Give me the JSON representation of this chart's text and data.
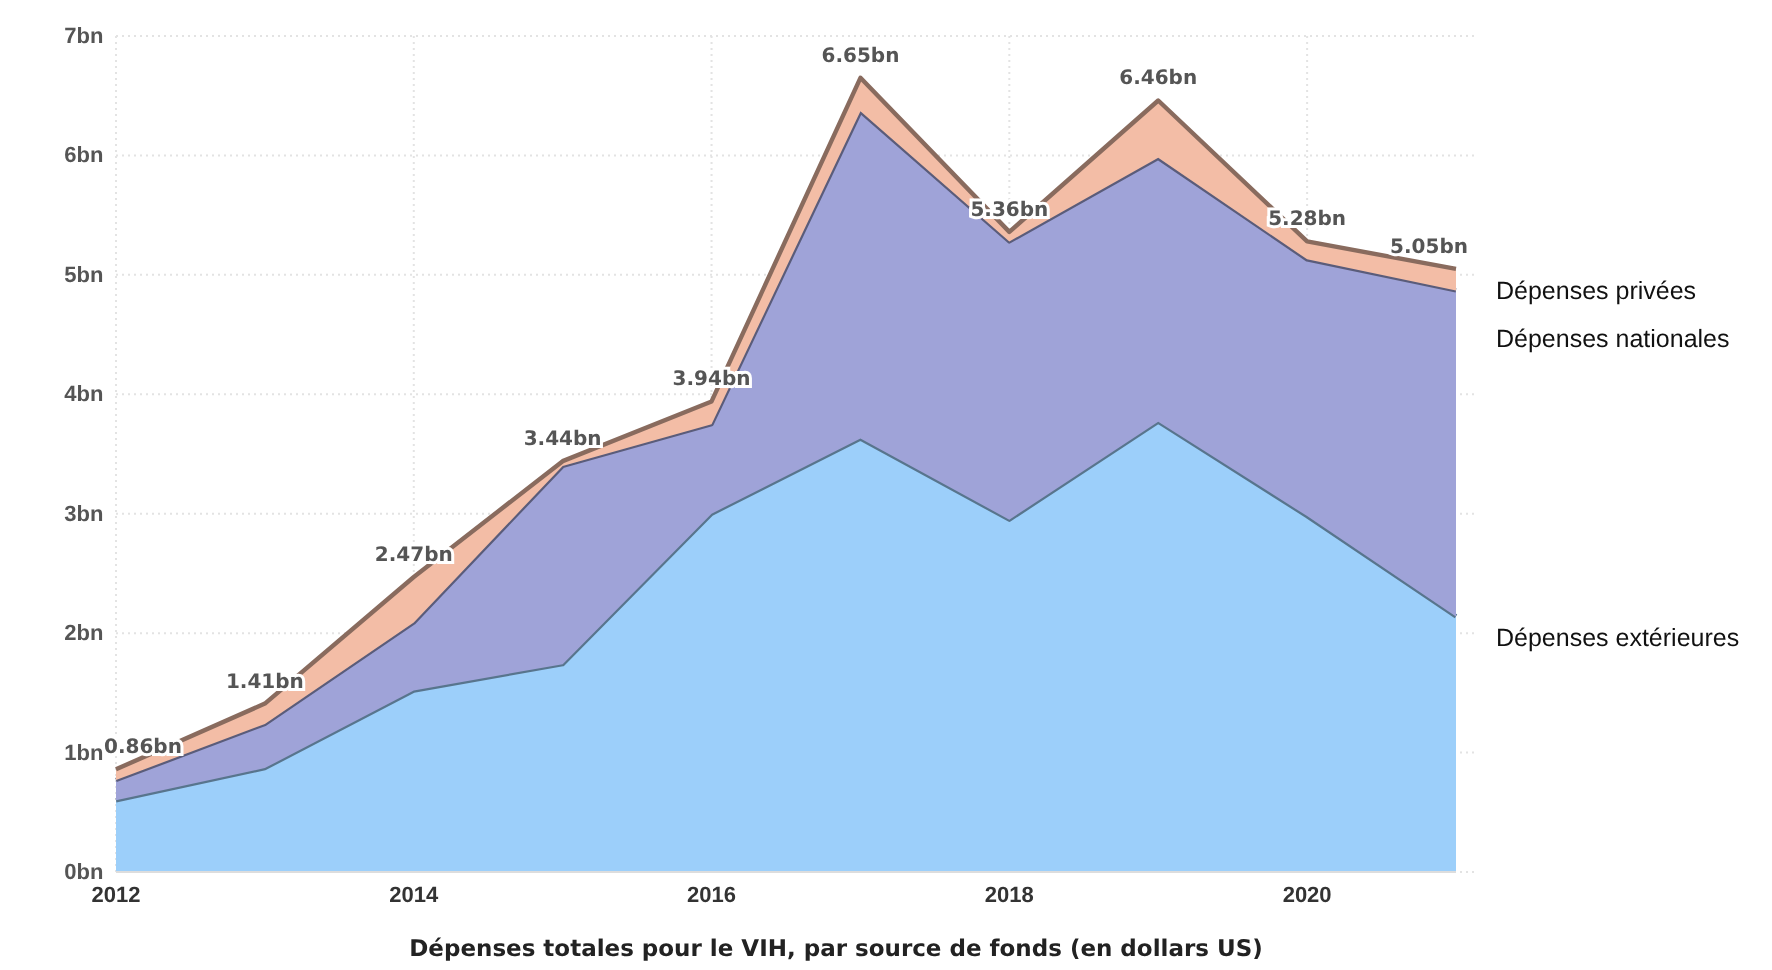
{
  "chart_data": {
    "type": "area",
    "stacked": true,
    "xlabel": "Dépenses totales pour le VIH, par source de fonds (en dollars US)",
    "x": [
      2012,
      2013,
      2014,
      2015,
      2016,
      2017,
      2018,
      2019,
      2020,
      2021
    ],
    "series": [
      {
        "name": "Dépenses extérieures",
        "color": "#9ccffa",
        "values": [
          0.6,
          0.87,
          1.52,
          1.74,
          3.0,
          3.63,
          2.95,
          3.77,
          2.98,
          2.14
        ]
      },
      {
        "name": "Dépenses nationales",
        "color": "#9fa3d8",
        "values": [
          0.17,
          0.37,
          0.57,
          1.66,
          0.75,
          2.74,
          2.33,
          2.21,
          2.15,
          2.73
        ]
      },
      {
        "name": "Dépenses privées",
        "color": "#f3bda6",
        "values": [
          0.09,
          0.17,
          0.38,
          0.04,
          0.19,
          0.28,
          0.08,
          0.48,
          0.15,
          0.18
        ]
      }
    ],
    "totals": [
      "0.86bn",
      "1.41bn",
      "2.47bn",
      "3.44bn",
      "3.94bn",
      "6.65bn",
      "5.36bn",
      "6.46bn",
      "5.28bn",
      "5.05bn"
    ],
    "xlim": [
      2012,
      2021
    ],
    "xticks": [
      2012,
      2014,
      2016,
      2018,
      2020
    ],
    "ylim": [
      0,
      7
    ],
    "yticks": [
      {
        "value": 0,
        "label": "0bn"
      },
      {
        "value": 1,
        "label": "1bn"
      },
      {
        "value": 2,
        "label": "2bn"
      },
      {
        "value": 3,
        "label": "3bn"
      },
      {
        "value": 4,
        "label": "4bn"
      },
      {
        "value": 5,
        "label": "5bn"
      },
      {
        "value": 6,
        "label": "6bn"
      },
      {
        "value": 7,
        "label": "7bn"
      }
    ],
    "grid": true
  }
}
